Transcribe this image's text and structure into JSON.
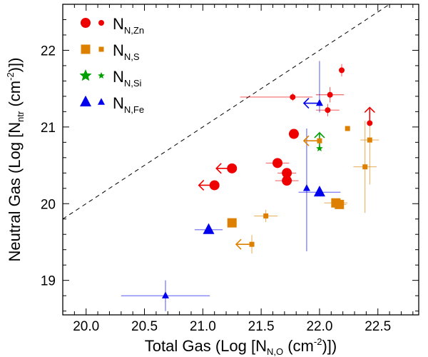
{
  "chart_data": {
    "type": "scatter",
    "xlabel": {
      "main": "Total Gas (Log [N",
      "sub": "N,O",
      "tail": " (cm",
      "sup": "-2",
      "end": ")])"
    },
    "ylabel": {
      "main": "Neutral Gas (Log [N",
      "sub": "ntr",
      "tail": " (cm",
      "sup": "-2",
      "end": ")])"
    },
    "xlim": [
      19.8,
      22.85
    ],
    "ylim": [
      18.55,
      22.6
    ],
    "xticks": [
      "20.0",
      "20.5",
      "21.0",
      "21.5",
      "22.0",
      "22.5"
    ],
    "yticks": [
      "19",
      "20",
      "21",
      "22"
    ],
    "reference_line": {
      "style": "dashed",
      "slope": 1,
      "intercept": 0
    },
    "colors": {
      "Zn": "#ee0000",
      "S": "#dd8000",
      "Si": "#00a000",
      "Fe": "#0000ee",
      "axis": "#000000"
    },
    "legend": {
      "placement": "top-left",
      "entries": [
        {
          "main": "N",
          "sub": "N,Zn",
          "marker": "circle",
          "color": "#ee0000"
        },
        {
          "main": "N",
          "sub": "N,S",
          "marker": "square",
          "color": "#dd8000"
        },
        {
          "main": "N",
          "sub": "N,Si",
          "marker": "star",
          "color": "#00a000"
        },
        {
          "main": "N",
          "sub": "N,Fe",
          "marker": "triangle",
          "color": "#0000ee"
        }
      ]
    },
    "series": [
      {
        "key": "Zn",
        "marker": "circle",
        "color": "#ee0000",
        "points": [
          {
            "x": 21.25,
            "y": 20.46,
            "size": "large",
            "xlimit": "upper"
          },
          {
            "x": 21.1,
            "y": 20.24,
            "size": "large",
            "xlimit": "upper"
          },
          {
            "x": 21.64,
            "y": 20.53,
            "size": "large",
            "xerr": 0.1,
            "yerr": 0.03
          },
          {
            "x": 21.72,
            "y": 20.4,
            "size": "large",
            "xerr": 0.08
          },
          {
            "x": 21.72,
            "y": 20.3,
            "size": "large",
            "xerr": 0.1
          },
          {
            "x": 21.78,
            "y": 20.91,
            "size": "large"
          },
          {
            "x": 21.77,
            "y": 21.39,
            "size": "small",
            "xerr_lo": 0.45,
            "xerr_hi": 0.17,
            "yerr": 0.05
          },
          {
            "x": 22.09,
            "y": 21.42,
            "size": "small",
            "xerr": 0.12,
            "yerr": 0.1
          },
          {
            "x": 22.07,
            "y": 21.22,
            "size": "small",
            "xerr": 0.1,
            "yerr": 0.08
          },
          {
            "x": 22.19,
            "y": 21.74,
            "size": "small",
            "yerr": 0.08
          },
          {
            "x": 22.43,
            "y": 21.05,
            "size": "small",
            "ylimit": "lower"
          }
        ]
      },
      {
        "key": "S",
        "marker": "square",
        "color": "#dd8000",
        "points": [
          {
            "x": 21.25,
            "y": 19.75,
            "size": "large"
          },
          {
            "x": 21.54,
            "y": 19.84,
            "size": "small",
            "xerr": 0.1,
            "yerr": 0.08
          },
          {
            "x": 21.42,
            "y": 19.47,
            "size": "small",
            "xlimit": "upper",
            "yerr": 0.12
          },
          {
            "x": 22.14,
            "y": 20.01,
            "size": "large",
            "xerr": 0.1
          },
          {
            "x": 22.17,
            "y": 19.99,
            "size": "large",
            "xerr": 0.06
          },
          {
            "x": 22.0,
            "y": 20.82,
            "size": "small",
            "xlimit": "upper",
            "yerr": 0.12
          },
          {
            "x": 22.24,
            "y": 20.98,
            "size": "small"
          },
          {
            "x": 22.39,
            "y": 20.48,
            "size": "small",
            "xerr": 0.1,
            "yerr": 0.6
          },
          {
            "x": 22.43,
            "y": 20.83,
            "size": "small",
            "xerr": 0.08,
            "yerr_lo": 0.58,
            "yerr_hi": 0.2
          }
        ]
      },
      {
        "key": "Si",
        "marker": "star",
        "color": "#00a000",
        "points": [
          {
            "x": 22.0,
            "y": 20.72,
            "size": "small",
            "ylimit": "lower"
          }
        ]
      },
      {
        "key": "Fe",
        "marker": "triangle",
        "color": "#0000ee",
        "points": [
          {
            "x": 21.05,
            "y": 19.66,
            "size": "large",
            "xerr": 0.12
          },
          {
            "x": 20.68,
            "y": 18.8,
            "size": "small",
            "xerr": 0.38,
            "yerr": 0.2
          },
          {
            "x": 21.89,
            "y": 20.2,
            "size": "small",
            "yerr_lo": 0.82,
            "yerr_hi": 0.78
          },
          {
            "x": 22.0,
            "y": 20.15,
            "size": "large",
            "xerr": 0.18
          },
          {
            "x": 22.0,
            "y": 21.31,
            "size": "small",
            "xlimit": "upper",
            "yerr_lo": 0.12,
            "yerr_hi": 0.55
          }
        ]
      }
    ]
  }
}
